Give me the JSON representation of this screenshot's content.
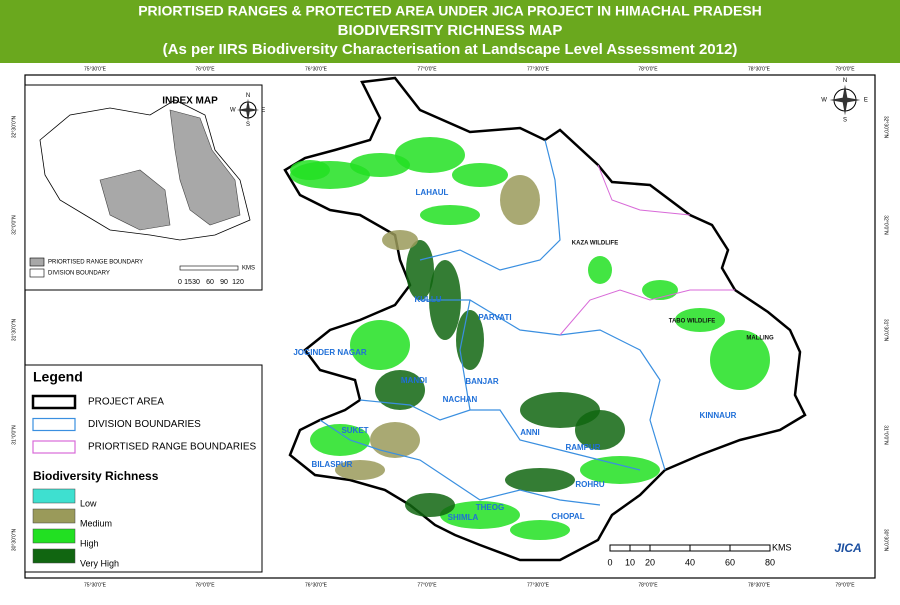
{
  "header": {
    "lines": [
      "PRIORTISED RANGES & PROTECTED AREA UNDER JICA PROJECT IN HIMACHAL PRADESH",
      "BIODIVERSITY RICHNESS MAP",
      "(As per IIRS Biodiversity Characterisation at Landscape Level Assessment 2012)"
    ]
  },
  "coords": {
    "longitudes": [
      "75°30'0\"E",
      "76°0'0\"E",
      "76°30'0\"E",
      "77°0'0\"E",
      "77°30'0\"E",
      "78°0'0\"E",
      "78°30'0\"E",
      "79°0'0\"E"
    ],
    "latitudes": [
      "32°30'0\"N",
      "32°0'0\"N",
      "31°30'0\"N",
      "31°0'0\"N",
      "30°30'0\"N"
    ]
  },
  "index_map": {
    "title": "INDEX MAP",
    "legend": [
      "PRIORTISED RANGE BOUNDARY",
      "DIVISION BOUNDARY"
    ],
    "scale_unit": "KMS",
    "scale_ticks": [
      "0",
      "15",
      "30",
      "60",
      "90",
      "120"
    ]
  },
  "compass": [
    "N",
    "S",
    "E",
    "W"
  ],
  "legend": {
    "title": "Legend",
    "boundaries": [
      {
        "label": "PROJECT AREA",
        "color": "#000000"
      },
      {
        "label": "DIVISION BOUNDARIES",
        "color": "#3a8fe0"
      },
      {
        "label": "PRIORTISED RANGE BOUNDARIES",
        "color": "#d86ad8"
      }
    ],
    "richness_title": "Biodiversity Richness",
    "classes": [
      {
        "label": "Low",
        "color": "#3ee0d0"
      },
      {
        "label": "Medium",
        "color": "#9a9a5a"
      },
      {
        "label": "High",
        "color": "#22e022"
      },
      {
        "label": "Very High",
        "color": "#116611"
      }
    ]
  },
  "map_labels": [
    "LAHAUL",
    "KAZA WILDLIFE",
    "KULLU",
    "PARVATI",
    "JOGINDER NAGAR",
    "MANDI",
    "BANJAR",
    "NACHAN",
    "TABO WILDLIFE",
    "MALLING",
    "KINNAUR",
    "ANNI",
    "RAMPUR",
    "SUKET",
    "BILASPUR",
    "ROHRU",
    "SHIMLA",
    "THEOG",
    "CHOPAL"
  ],
  "scale": {
    "unit": "KMS",
    "ticks": [
      "0",
      "10",
      "20",
      "40",
      "60",
      "80"
    ]
  },
  "logo": "JICA"
}
